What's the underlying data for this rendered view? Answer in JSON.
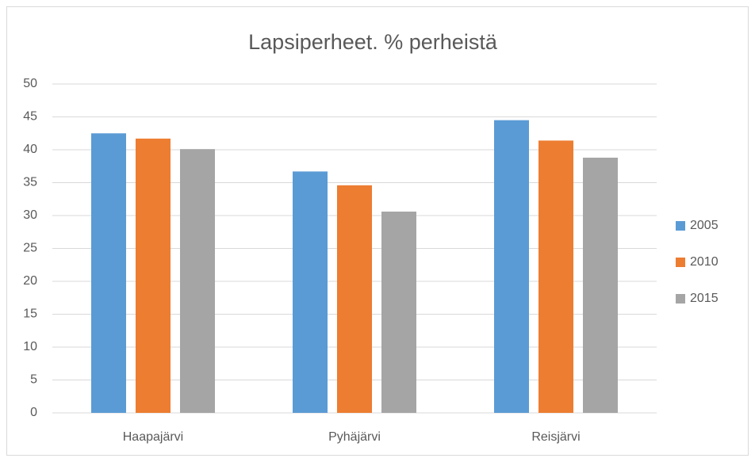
{
  "chart_data": {
    "type": "bar",
    "title": "Lapsiperheet. % perheistä",
    "categories": [
      "Haapajärvi",
      "Pyhäjärvi",
      "Reisjärvi"
    ],
    "series": [
      {
        "name": "2005",
        "color": "#5b9bd5",
        "values": [
          42.5,
          36.7,
          44.5
        ]
      },
      {
        "name": "2010",
        "color": "#ed7d31",
        "values": [
          41.7,
          34.6,
          41.4
        ]
      },
      {
        "name": "2015",
        "color": "#a5a5a5",
        "values": [
          40.1,
          30.6,
          38.8
        ]
      }
    ],
    "ylim": [
      0,
      50
    ],
    "yticks": [
      0,
      5,
      10,
      15,
      20,
      25,
      30,
      35,
      40,
      45,
      50
    ],
    "grid": true,
    "legend": "right"
  }
}
